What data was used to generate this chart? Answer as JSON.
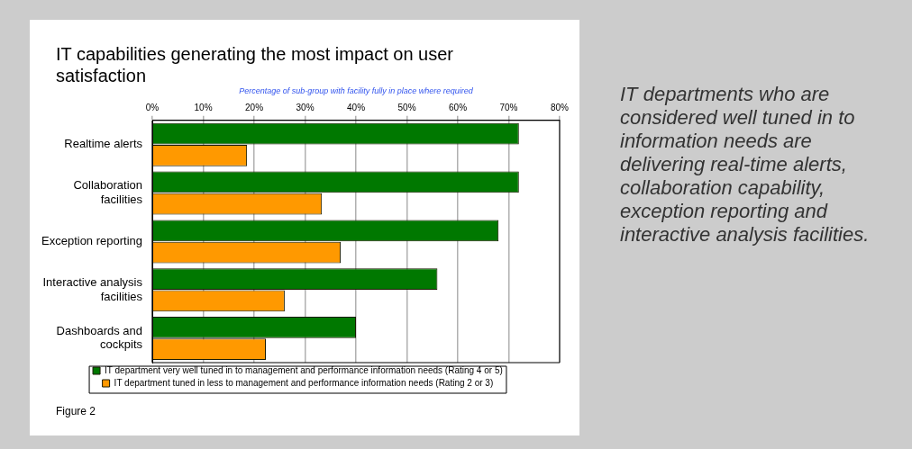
{
  "chart_data": {
    "type": "bar",
    "orientation": "horizontal",
    "title": "IT capabilities generating the most impact on user satisfaction",
    "xlabel": "Percentage of sub-group with facility fully in place where required",
    "categories": [
      "Realtime alerts",
      "Collaboration facilities",
      "Exception reporting",
      "Interactive analysis facilities",
      "Dashboards and cockpits"
    ],
    "series": [
      {
        "name": "IT department very well tuned in to management and performance information needs (Rating 4 or 5)",
        "color": "#007800",
        "values": [
          72,
          72,
          68,
          56,
          40
        ]
      },
      {
        "name": "IT department tuned in less to management and performance information needs (Rating 2 or 3)",
        "color": "#ff9900",
        "values": [
          18.6,
          33.3,
          37,
          26,
          22.3
        ]
      }
    ],
    "xlim": [
      0,
      80
    ],
    "xticks": [
      {
        "value": 0,
        "label": "0%"
      },
      {
        "value": 10,
        "label": "10%"
      },
      {
        "value": 20,
        "label": "20%"
      },
      {
        "value": 30,
        "label": "30%"
      },
      {
        "value": 40,
        "label": "40%"
      },
      {
        "value": 50,
        "label": "50%"
      },
      {
        "value": 60,
        "label": "60%"
      },
      {
        "value": 70,
        "label": "70%"
      },
      {
        "value": 80,
        "label": "80%"
      }
    ],
    "grid": "x",
    "legend": "bottom",
    "annotations": [
      "IT departments who are considered well tuned in to information needs are delivering real-time alerts, collaboration capability, exception reporting and interactive analysis facilities.",
      "Figure 2"
    ]
  }
}
